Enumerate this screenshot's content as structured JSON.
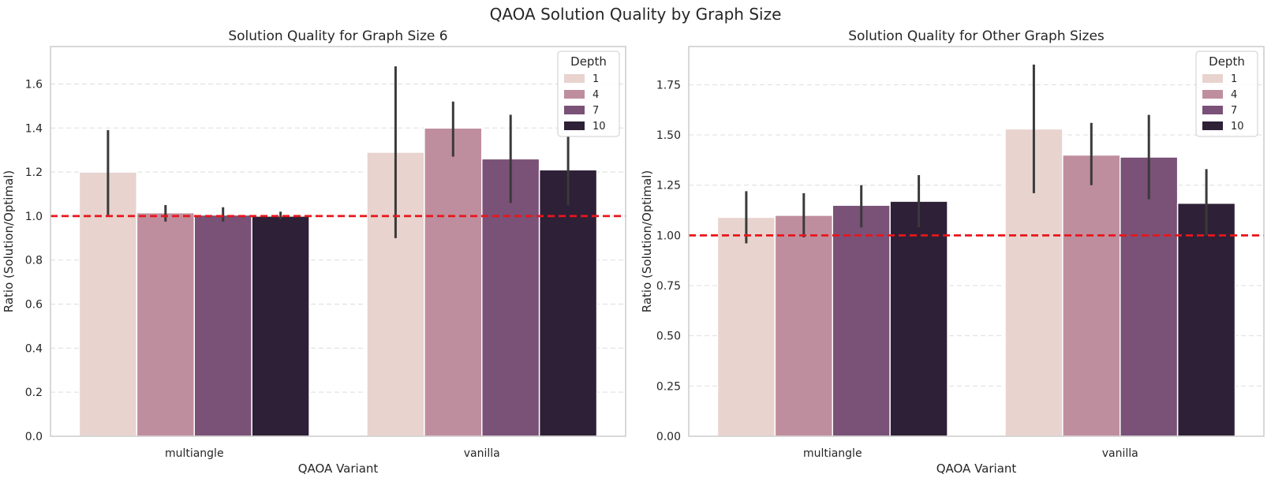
{
  "figure": {
    "suptitle": "QAOA Solution Quality by Graph Size"
  },
  "colors": {
    "depth": [
      "#e8d3ce",
      "#bf8e9e",
      "#7a5177",
      "#2e2037"
    ],
    "reference_line": "#e8161b",
    "errorbar": "#3a3a3a",
    "grid": "#dddddd",
    "axes_edge": "#cccccc"
  },
  "chart_data": [
    {
      "type": "bar",
      "title": "Solution Quality for Graph Size 6",
      "xlabel": "QAOA Variant",
      "ylabel": "Ratio (Solution/Optimal)",
      "categories": [
        "multiangle",
        "vanilla"
      ],
      "ylim": [
        0,
        1.77
      ],
      "yticks": [
        "0.0",
        "0.2",
        "0.4",
        "0.6",
        "0.8",
        "1.0",
        "1.2",
        "1.4",
        "1.6"
      ],
      "reference_line": 1.0,
      "grid": "horizontal dashed",
      "legend": {
        "title": "Depth",
        "placement": "top-right"
      },
      "series": [
        {
          "name": "1",
          "values": [
            1.2,
            1.29
          ],
          "err_low": [
            1.0,
            0.9
          ],
          "err_high": [
            1.39,
            1.68
          ]
        },
        {
          "name": "4",
          "values": [
            1.015,
            1.4
          ],
          "err_low": [
            0.975,
            1.27
          ],
          "err_high": [
            1.05,
            1.52
          ]
        },
        {
          "name": "7",
          "values": [
            1.005,
            1.26
          ],
          "err_low": [
            0.975,
            1.06
          ],
          "err_high": [
            1.04,
            1.46
          ]
        },
        {
          "name": "10",
          "values": [
            1.0,
            1.21
          ],
          "err_low": [
            0.985,
            1.05
          ],
          "err_high": [
            1.02,
            1.36
          ]
        }
      ]
    },
    {
      "type": "bar",
      "title": "Solution Quality for Other Graph Sizes",
      "xlabel": "QAOA Variant",
      "ylabel": "Ratio (Solution/Optimal)",
      "categories": [
        "multiangle",
        "vanilla"
      ],
      "ylim": [
        0,
        1.94
      ],
      "yticks": [
        "0.00",
        "0.25",
        "0.50",
        "0.75",
        "1.00",
        "1.25",
        "1.50",
        "1.75"
      ],
      "reference_line": 1.0,
      "grid": "horizontal dashed",
      "legend": {
        "title": "Depth",
        "placement": "top-right"
      },
      "series": [
        {
          "name": "1",
          "values": [
            1.09,
            1.53
          ],
          "err_low": [
            0.96,
            1.21
          ],
          "err_high": [
            1.22,
            1.85
          ]
        },
        {
          "name": "4",
          "values": [
            1.1,
            1.4
          ],
          "err_low": [
            0.99,
            1.25
          ],
          "err_high": [
            1.21,
            1.56
          ]
        },
        {
          "name": "7",
          "values": [
            1.15,
            1.39
          ],
          "err_low": [
            1.04,
            1.18
          ],
          "err_high": [
            1.25,
            1.6
          ]
        },
        {
          "name": "10",
          "values": [
            1.17,
            1.16
          ],
          "err_low": [
            1.04,
            1.0
          ],
          "err_high": [
            1.3,
            1.33
          ]
        }
      ]
    }
  ]
}
